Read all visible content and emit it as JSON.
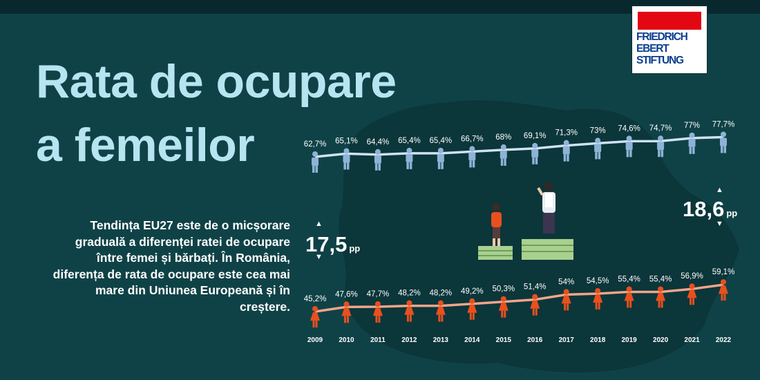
{
  "title": {
    "line1": "Rata de ocupare",
    "line2": "a femeilor"
  },
  "description": "Tendința EU27 este de o micșorare graduală a diferenței ratei de ocupare între femei și bărbați. În România, diferența de rata de ocupare este cea mai mare din Uniunea Europeană și în creștere.",
  "logo": {
    "line1": "FRIEDRICH",
    "line2": "EBERT",
    "line3": "STIFTUNG",
    "red": "#e30613",
    "blue": "#0b3d91"
  },
  "gaps": {
    "left": {
      "value": "17,5",
      "unit": "pp"
    },
    "right": {
      "value": "18,6",
      "unit": "pp"
    },
    "arrow_up": "▲",
    "arrow_down": "▼"
  },
  "colors": {
    "background": "#0f4246",
    "title": "#b7e4f1",
    "men": "#8db3d6",
    "men_line": "#cfe2f3",
    "women": "#e8501e",
    "women_line": "#f2a58a"
  },
  "chart_data": {
    "type": "line",
    "categories": [
      "2009",
      "2010",
      "2011",
      "2012",
      "2013",
      "2014",
      "2015",
      "2016",
      "2017",
      "2018",
      "2019",
      "2020",
      "2021",
      "2022"
    ],
    "series": [
      {
        "name": "",
        "icon": "man-icon",
        "values": [
          62.7,
          65.1,
          64.4,
          65.4,
          65.4,
          66.7,
          68,
          69.1,
          71.3,
          73,
          74.6,
          74.7,
          77,
          77.7
        ],
        "labels": [
          "62,7%",
          "65,1%",
          "64,4%",
          "65,4%",
          "65,4%",
          "66,7%",
          "68%",
          "69,1%",
          "71,3%",
          "73%",
          "74,6%",
          "74,7%",
          "77%",
          "77,7%"
        ]
      },
      {
        "name": "",
        "icon": "woman-icon",
        "values": [
          45.2,
          47.6,
          47.7,
          48.2,
          48.2,
          49.2,
          50.3,
          51.4,
          54,
          54.5,
          55.4,
          55.4,
          56.9,
          59.1
        ],
        "labels": [
          "45,2%",
          "47,6%",
          "47,7%",
          "48,2%",
          "48,2%",
          "49,2%",
          "50,3%",
          "51,4%",
          "54%",
          "54,5%",
          "55,4%",
          "55,4%",
          "56,9%",
          "59,1%"
        ]
      }
    ],
    "gap_start_pp": 17.5,
    "gap_end_pp": 18.6,
    "grid": false,
    "legend": "none"
  }
}
